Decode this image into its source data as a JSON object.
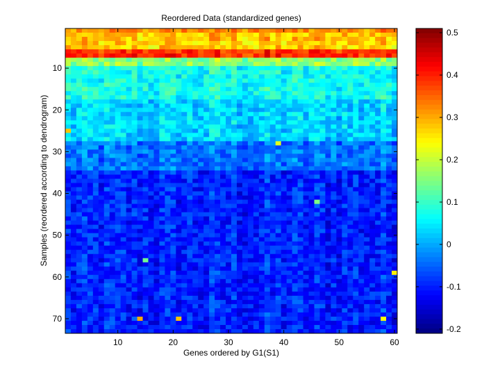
{
  "figure": {
    "title": "Reordered Data (standardized genes)",
    "xlabel": "Genes ordered by G1(S1)",
    "ylabel": "Samples (reordered according to dendrogram)"
  },
  "chart_data": {
    "type": "heatmap",
    "title": "Reordered Data (standardized genes)",
    "xlabel": "Genes ordered by G1(S1)",
    "ylabel": "Samples (reordered according to dendrogram)",
    "n_cols": 60,
    "n_rows": 73,
    "x_ticks": [
      10,
      20,
      30,
      40,
      50,
      60
    ],
    "y_ticks": [
      10,
      20,
      30,
      40,
      50,
      60,
      70
    ],
    "colormap": "jet",
    "colorbar": {
      "range": [
        -0.21,
        0.51
      ],
      "ticks": [
        0.5,
        0.4,
        0.3,
        0.2,
        0.1,
        0,
        -0.1,
        -0.2
      ],
      "tick_labels": [
        "0.5",
        "0.4",
        "0.3",
        "0.2",
        "0.1",
        "0",
        "-0.1",
        "-0.2"
      ]
    },
    "row_band_means": [
      {
        "rows": [
          1,
          1
        ],
        "mean": 0.32
      },
      {
        "rows": [
          2,
          3
        ],
        "mean": 0.28
      },
      {
        "rows": [
          4,
          5
        ],
        "mean": 0.27
      },
      {
        "rows": [
          6,
          7
        ],
        "mean": 0.39
      },
      {
        "rows": [
          8,
          9
        ],
        "mean": 0.16
      },
      {
        "rows": [
          10,
          17
        ],
        "mean": 0.07
      },
      {
        "rows": [
          18,
          27
        ],
        "mean": 0.03
      },
      {
        "rows": [
          28,
          34
        ],
        "mean": -0.04
      },
      {
        "rows": [
          35,
          73
        ],
        "mean": -0.1
      }
    ],
    "hot_cells": [
      {
        "col": 1,
        "row": 25,
        "value": 0.28
      },
      {
        "col": 39,
        "row": 28,
        "value": 0.22
      },
      {
        "col": 14,
        "row": 70,
        "value": 0.3
      },
      {
        "col": 21,
        "row": 70,
        "value": 0.28
      },
      {
        "col": 58,
        "row": 70,
        "value": 0.24
      },
      {
        "col": 60,
        "row": 59,
        "value": 0.25
      },
      {
        "col": 46,
        "row": 42,
        "value": 0.15
      },
      {
        "col": 15,
        "row": 56,
        "value": 0.14
      }
    ]
  }
}
